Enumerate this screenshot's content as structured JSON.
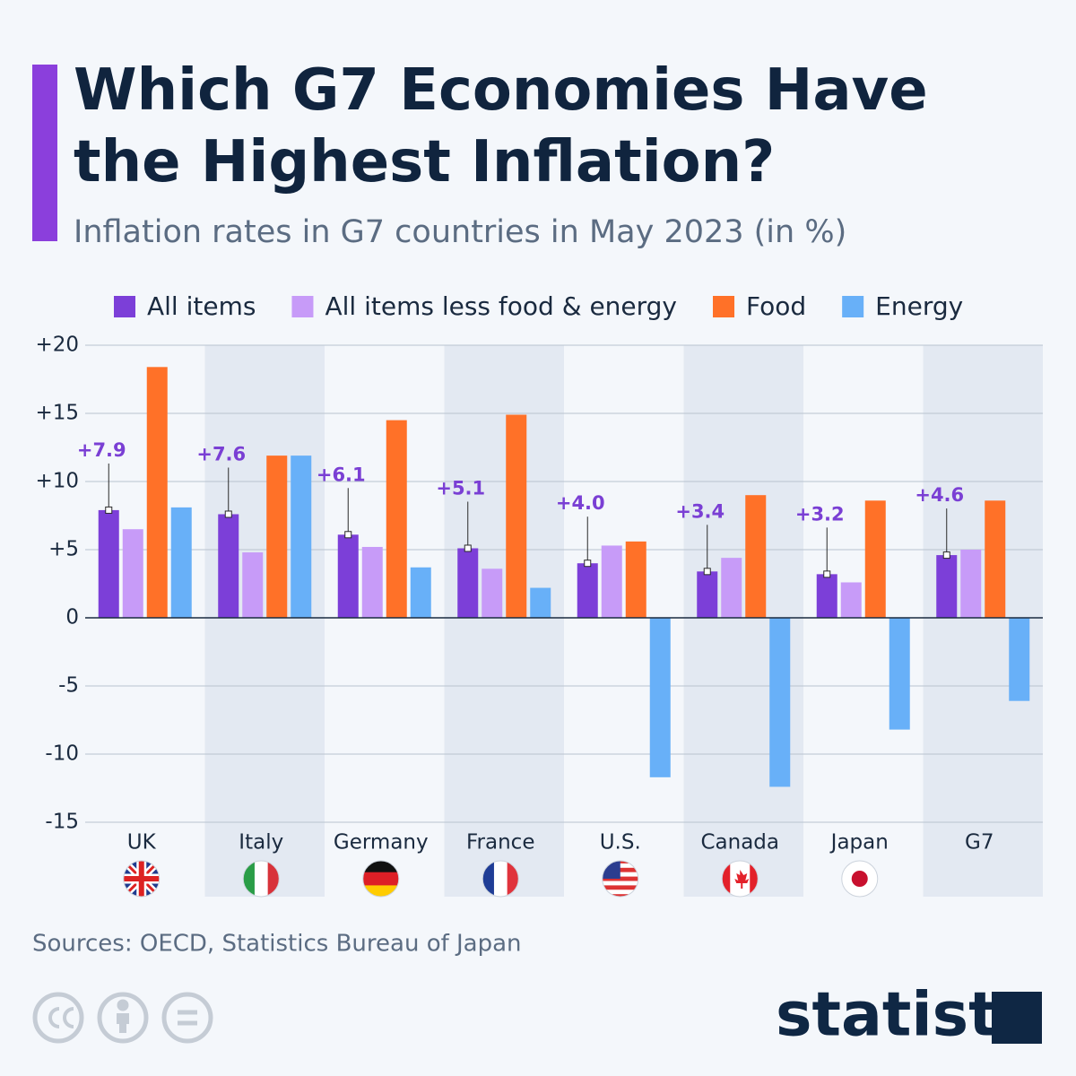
{
  "chart_data": {
    "type": "bar",
    "title": [
      "Which G7 Economies Have",
      "the Highest Inflation?"
    ],
    "subtitle": "Inflation rates in G7 countries in May 2023 (in %)",
    "categories": [
      "UK",
      "Italy",
      "Germany",
      "France",
      "U.S.",
      "Canada",
      "Japan",
      "G7"
    ],
    "series": [
      {
        "name": "All items",
        "color": "#7c3fd8",
        "values": [
          7.9,
          7.6,
          6.1,
          5.1,
          4.0,
          3.4,
          3.2,
          4.6
        ],
        "value_labels": [
          "+7.9",
          "+7.6",
          "+6.1",
          "+5.1",
          "+4.0",
          "+3.4",
          "+3.2",
          "+4.6"
        ]
      },
      {
        "name": "All items less food & energy",
        "color": "#c79bf8",
        "values": [
          6.5,
          4.8,
          5.2,
          3.6,
          5.3,
          4.4,
          2.6,
          5.0
        ]
      },
      {
        "name": "Food",
        "color": "#ff7128",
        "values": [
          18.4,
          11.9,
          14.5,
          14.9,
          5.6,
          9.0,
          8.6,
          8.6
        ]
      },
      {
        "name": "Energy",
        "color": "#68b0f8",
        "values": [
          8.1,
          11.9,
          3.7,
          2.2,
          -11.7,
          -12.4,
          -8.2,
          -6.1
        ]
      }
    ],
    "ylim": [
      -15,
      20
    ],
    "yticks": [
      -15,
      -10,
      -5,
      0,
      {
        "value": 5,
        "label": "+5"
      },
      {
        "value": 10,
        "label": "+10"
      },
      {
        "value": 15,
        "label": "+15"
      },
      {
        "value": 20,
        "label": "+20"
      }
    ],
    "grid": true,
    "legend": "top",
    "source": "Sources: OECD, Statistics Bureau of Japan",
    "brand": "statista"
  }
}
